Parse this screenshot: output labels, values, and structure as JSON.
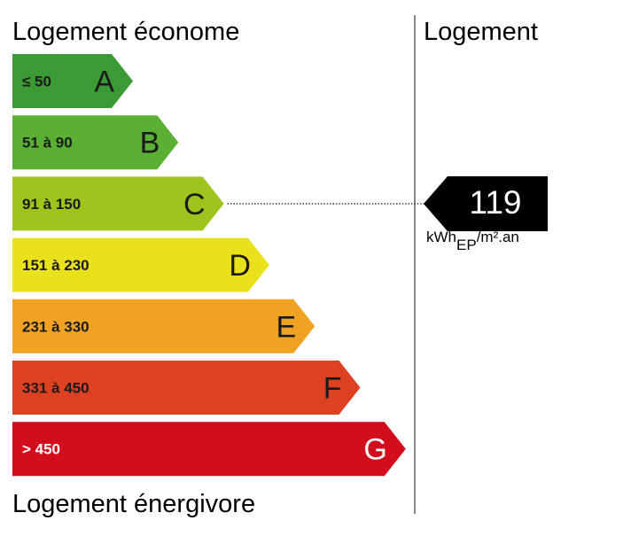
{
  "headings": {
    "top": "Logement économe",
    "bottom": "Logement énergivore",
    "right": "Logement"
  },
  "chart_data": {
    "type": "bar",
    "categories": [
      "A",
      "B",
      "C",
      "D",
      "E",
      "F",
      "G"
    ],
    "ranges": [
      "≤ 50",
      "51 à 90",
      "91 à 150",
      "151 à 230",
      "231 à 330",
      "331 à 450",
      "> 450"
    ],
    "colors": [
      "#3c9a35",
      "#59b033",
      "#9fc41e",
      "#e9e11c",
      "#f0a322",
      "#dd4121",
      "#d20e1e"
    ],
    "current": {
      "value": 119,
      "value_label": "119",
      "class": "C",
      "unit_main": "kWh",
      "unit_sub": "EP",
      "unit_rest": "/m².an"
    }
  }
}
